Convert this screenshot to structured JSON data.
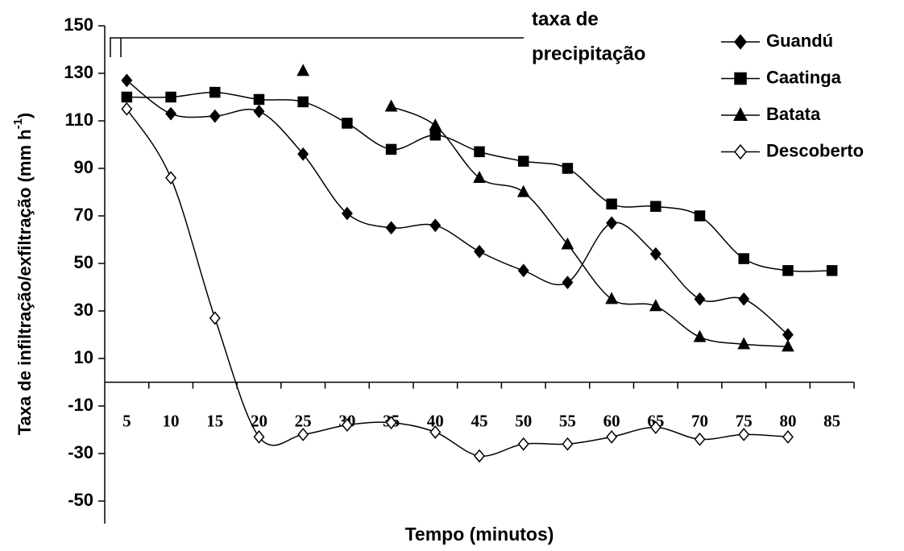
{
  "chart_data": {
    "type": "line",
    "ylabel": [
      "Taxa de infiltração/exfiltração (mm h",
      "-1",
      ")"
    ],
    "xlabel": "Tempo (minutos)",
    "annotation": [
      "taxa de",
      "precipitação"
    ],
    "categories": [
      5,
      10,
      15,
      20,
      25,
      30,
      35,
      40,
      45,
      50,
      55,
      60,
      65,
      70,
      75,
      80,
      85
    ],
    "ylim": [
      -50,
      150
    ],
    "yticks": [
      -50,
      -30,
      -10,
      10,
      30,
      50,
      70,
      90,
      110,
      130,
      150
    ],
    "legend": "upper right",
    "series": [
      {
        "name": "Guandú",
        "color": "#000000",
        "marker": "diamond",
        "marker_fill": "#000000",
        "values": [
          127,
          113,
          112,
          114,
          96,
          71,
          65,
          66,
          55,
          47,
          42,
          67,
          54,
          35,
          35,
          20,
          null
        ]
      },
      {
        "name": "Caatinga",
        "color": "#000000",
        "marker": "square",
        "marker_fill": "#000000",
        "values": [
          120,
          120,
          122,
          119,
          118,
          109,
          98,
          104,
          97,
          93,
          90,
          75,
          74,
          70,
          52,
          47,
          47
        ]
      },
      {
        "name": "Batata",
        "color": "#000000",
        "marker": "triangle",
        "marker_fill": "#000000",
        "values": [
          null,
          null,
          null,
          null,
          131,
          null,
          116,
          108,
          86,
          80,
          58,
          35,
          32,
          19,
          16,
          15,
          null
        ]
      },
      {
        "name": "Descoberto",
        "color": "#000000",
        "marker": "diamond",
        "marker_fill": "#ffffff",
        "values": [
          115,
          86,
          27,
          -23,
          -22,
          -18,
          -17,
          -21,
          -31,
          -26,
          -26,
          -23,
          -19,
          -24,
          -22,
          -23,
          null
        ]
      }
    ]
  }
}
